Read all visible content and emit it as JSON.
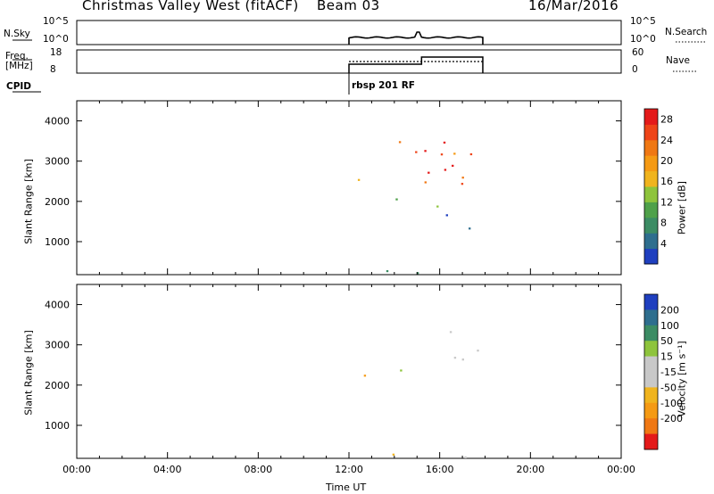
{
  "header": {
    "station": "Christmas Valley West (fitACF)",
    "beam": "Beam 03",
    "date": "16/Mar/2016"
  },
  "strips": {
    "nsky_label": "N.Sky",
    "nsky_ticks": [
      "10^5",
      "10^0"
    ],
    "nsearch_label": "N.Search",
    "freq_label_1": "Freq.",
    "freq_label_2": "[MHz]",
    "freq_ticks": [
      "18",
      "8"
    ],
    "nave_ticks": [
      "60",
      "0"
    ],
    "nave_label": "Nave",
    "cpid_label": "CPID",
    "cpid_value": "rbsp 201 RF"
  },
  "colors": {
    "power_scale": [
      "#0000ee",
      "#1f3fbf",
      "#2e6e8e",
      "#3c8c64",
      "#4fa14a",
      "#8ec43c",
      "#f0b41e",
      "#f59a14",
      "#f07814",
      "#ee4418",
      "#e41a1a"
    ],
    "velocity_scale": [
      "#1f3fbf",
      "#2e6e8e",
      "#3c8c64",
      "#8ec43c",
      "#c8c8c8",
      "#c8c8c8",
      "#f0b41e",
      "#f59a14",
      "#f07814",
      "#ee4418",
      "#e41a1a"
    ]
  },
  "chart_data": [
    {
      "type": "heatmap",
      "title": "Power",
      "ylabel": "Slant Range [km]",
      "xlabel": "Time UT",
      "xlim": [
        "00:00",
        "24:00"
      ],
      "ylim": [
        180,
        4500
      ],
      "x_ticks": [
        "00:00",
        "04:00",
        "08:00",
        "12:00",
        "16:00",
        "20:00",
        "00:00"
      ],
      "y_ticks": [
        1000,
        2000,
        3000,
        4000
      ],
      "colorbar": {
        "label": "Power [dB]",
        "ticks": [
          4,
          8,
          12,
          16,
          20,
          24,
          28
        ],
        "range": [
          0,
          30
        ]
      },
      "regions": [
        {
          "t": [
            14.2,
            17.6
          ],
          "r": [
            2300,
            3600
          ],
          "level": "high"
        },
        {
          "t": [
            15.9,
            16.6
          ],
          "r": [
            2600,
            3300
          ],
          "level": "high"
        },
        {
          "t": [
            12.0,
            12.7
          ],
          "r": [
            1900,
            2800
          ],
          "level": "medium"
        },
        {
          "t": [
            14.0,
            15.0
          ],
          "r": [
            1800,
            2800
          ],
          "level": "medium"
        },
        {
          "t": [
            15.0,
            17.5
          ],
          "r": [
            1300,
            2200
          ],
          "level": "low"
        },
        {
          "t": [
            12.0,
            17.8
          ],
          "r": [
            200,
            450
          ],
          "level": "low"
        }
      ]
    },
    {
      "type": "heatmap",
      "title": "Velocity",
      "ylabel": "Slant Range [km]",
      "xlabel": "Time UT",
      "xlim": [
        "00:00",
        "24:00"
      ],
      "ylim": [
        180,
        4500
      ],
      "x_ticks": [
        "00:00",
        "04:00",
        "08:00",
        "12:00",
        "16:00",
        "20:00",
        "00:00"
      ],
      "y_ticks": [
        1000,
        2000,
        3000,
        4000
      ],
      "colorbar": {
        "label": "Velocity [m s⁻¹]",
        "ticks": [
          200,
          100,
          50,
          15,
          -15,
          -50,
          -100,
          -200
        ]
      },
      "regions": [
        {
          "t": [
            16.0,
            17.9
          ],
          "r": [
            1800,
            3500
          ],
          "level": "ground"
        },
        {
          "t": [
            12.0,
            12.7
          ],
          "r": [
            1900,
            2800
          ],
          "level": "mixed"
        },
        {
          "t": [
            14.0,
            15.0
          ],
          "r": [
            1800,
            2800
          ],
          "level": "mixed"
        },
        {
          "t": [
            12.0,
            17.8
          ],
          "r": [
            200,
            450
          ],
          "level": "negative"
        }
      ]
    }
  ]
}
